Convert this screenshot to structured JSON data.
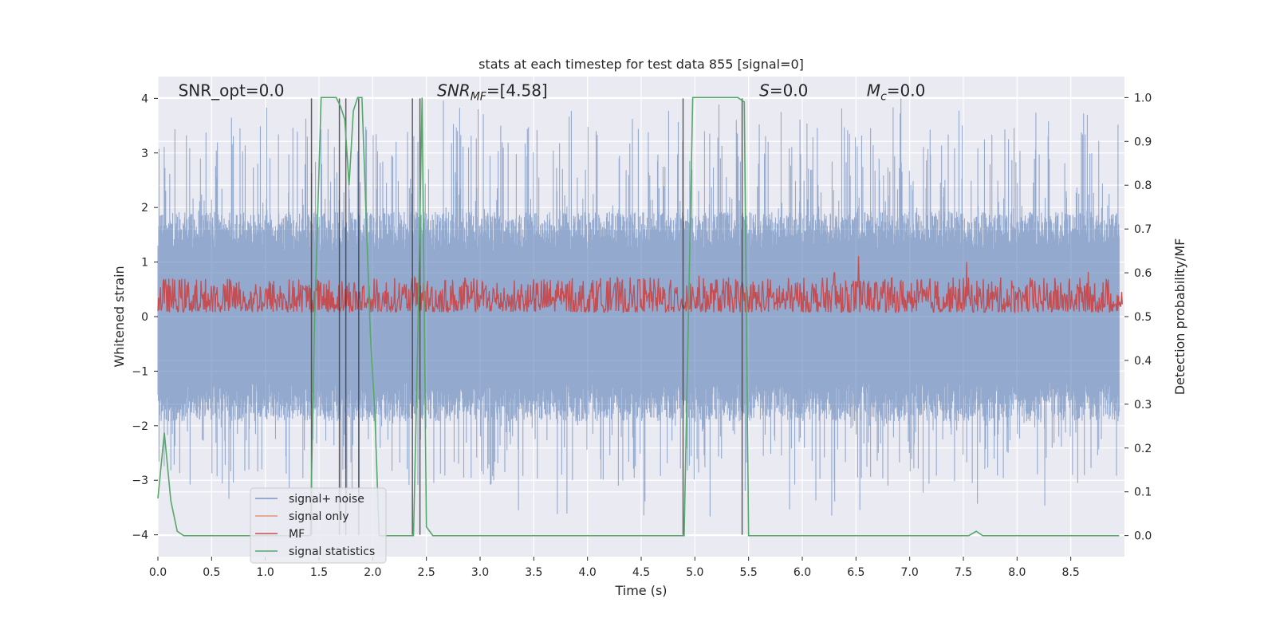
{
  "chart_data": {
    "type": "line",
    "title": "stats at each timestep for test data 855 [signal=0]",
    "xlabel": "Time (s)",
    "ylabel": "Whitened strain",
    "ylabel_right": "Detection probability/MF",
    "xlim": [
      0,
      9.0
    ],
    "ylim": [
      -4.4,
      4.4
    ],
    "ylim_right": [
      -0.048,
      1.048
    ],
    "x_ticks": [
      "0.0",
      "0.5",
      "1.0",
      "1.5",
      "2.0",
      "2.5",
      "3.0",
      "3.5",
      "4.0",
      "4.5",
      "5.0",
      "5.5",
      "6.0",
      "6.5",
      "7.0",
      "7.5",
      "8.0",
      "8.5"
    ],
    "x_tick_values": [
      0,
      0.5,
      1,
      1.5,
      2,
      2.5,
      3,
      3.5,
      4,
      4.5,
      5,
      5.5,
      6,
      6.5,
      7,
      7.5,
      8,
      8.5
    ],
    "y_ticks_left": [
      "4",
      "3",
      "2",
      "1",
      "0",
      "−1",
      "−2",
      "−3",
      "−4"
    ],
    "y_tick_values_left": [
      4,
      3,
      2,
      1,
      0,
      -1,
      -2,
      -3,
      -4
    ],
    "y_ticks_right": [
      "1.0",
      "0.9",
      "0.8",
      "0.7",
      "0.6",
      "0.5",
      "0.4",
      "0.3",
      "0.2",
      "0.1",
      "0.0"
    ],
    "y_tick_values_right": [
      1.0,
      0.9,
      0.8,
      0.7,
      0.6,
      0.5,
      0.4,
      0.3,
      0.2,
      0.1,
      0.0
    ],
    "grid": true,
    "legend_position": "lower-left",
    "annotations": [
      {
        "text": "SNR_opt=0.0",
        "x": 0.19,
        "y": 4.1
      },
      {
        "text": "SNR_MF=[4.58]",
        "x": 2.6,
        "y": 4.1,
        "math": "SNR_MF"
      },
      {
        "text": "S=0.0",
        "x": 5.6,
        "y": 4.1,
        "math": "S"
      },
      {
        "text": "M_c=0.0",
        "x": 6.6,
        "y": 4.1,
        "math": "M_c"
      }
    ],
    "series": [
      {
        "name": "signal+ noise",
        "color": "#4c72b0",
        "alpha": 0.5,
        "kind": "noise",
        "amplitude_typical": 1.6,
        "peak_max": 4.0
      },
      {
        "name": "signal only",
        "color": "#dd8452",
        "alpha": 0.6,
        "values": [
          0,
          0
        ]
      },
      {
        "name": "MF",
        "color": "#c44e52",
        "kind": "mf",
        "baseline_right": 0.5,
        "typical_right": 0.56
      },
      {
        "name": "signal statistics",
        "color": "#55a868",
        "x": [
          0.0,
          0.06,
          0.12,
          0.18,
          0.24,
          0.3,
          1.38,
          1.42,
          1.46,
          1.52,
          1.6,
          1.66,
          1.7,
          1.74,
          1.78,
          1.82,
          1.86,
          1.9,
          1.94,
          1.98,
          2.02,
          2.06,
          2.1,
          2.38,
          2.42,
          2.46,
          2.5,
          2.56,
          4.9,
          4.94,
          4.98,
          5.02,
          5.3,
          5.4,
          5.46,
          5.5,
          7.55,
          7.62,
          7.68,
          7.75,
          8.95
        ],
        "y": [
          0.085,
          0.235,
          0.08,
          0.01,
          0.0,
          0.0,
          0.0,
          0.0,
          0.5,
          1.0,
          1.0,
          1.0,
          0.98,
          0.95,
          0.8,
          0.97,
          1.0,
          1.0,
          0.72,
          0.45,
          0.28,
          0.0,
          0.0,
          0.0,
          0.45,
          1.0,
          0.02,
          0.0,
          0.0,
          0.5,
          1.0,
          1.0,
          1.0,
          1.0,
          0.99,
          0.0,
          0.0,
          0.01,
          0.0,
          0.0,
          0.0
        ]
      }
    ],
    "vlines_x": [
      1.43,
      1.69,
      1.75,
      1.87,
      2.37,
      2.44,
      4.89,
      5.44
    ]
  }
}
